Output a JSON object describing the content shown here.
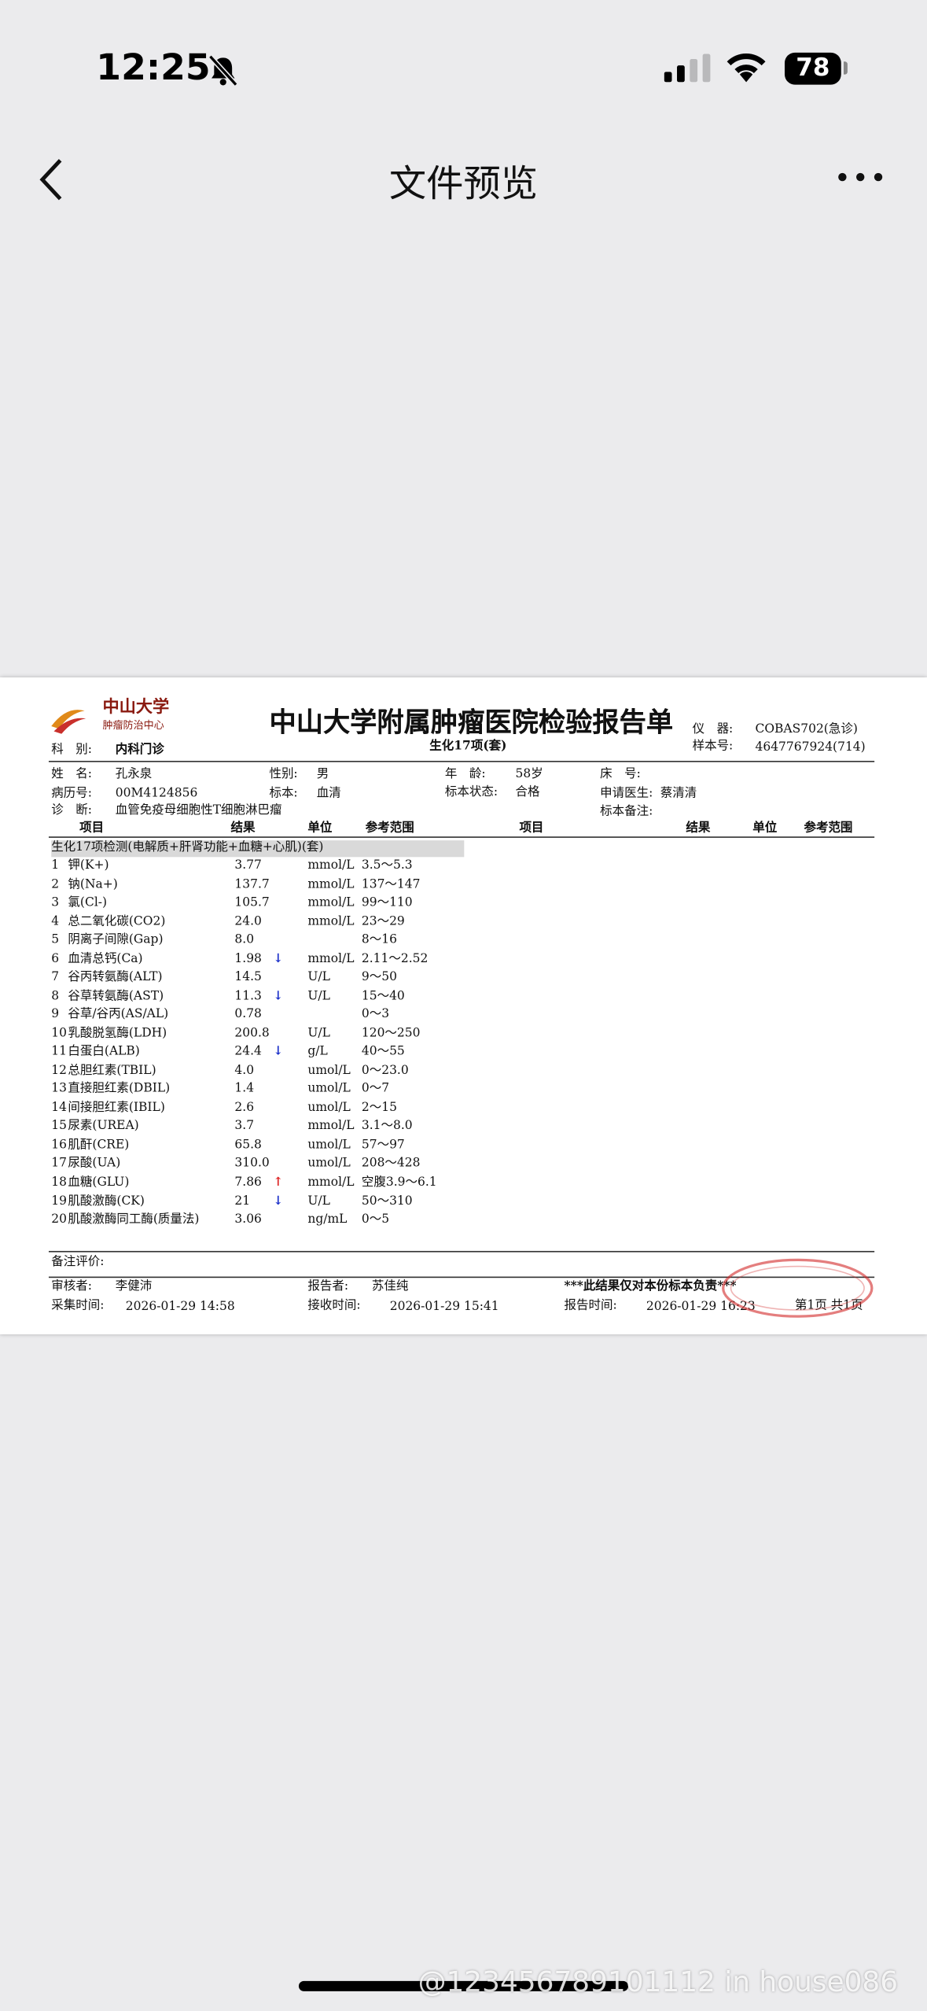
{
  "status_bar": {
    "time": "12:25",
    "battery": "78"
  },
  "nav": {
    "title": "文件预览"
  },
  "report": {
    "logo_name": "中山大学",
    "logo_sub": "肿瘤防治中心",
    "title": "中山大学附属肿瘤医院检验报告单",
    "subtitle": "生化17项(套)",
    "instrument_label": "仪　器:",
    "instrument": "COBAS702(急诊)",
    "sample_label": "样本号:",
    "sample": "4647767924(714)",
    "dept_label": "科　别:",
    "dept": "内科门诊",
    "name_label": "姓　名:",
    "name": "孔永泉",
    "sex_label": "性别:",
    "sex": "男",
    "age_label": "年　龄:",
    "age": "58岁",
    "bed_label": "床　号:",
    "record_label": "病历号:",
    "record": "00M4124856",
    "specimen_label": "标本:",
    "specimen": "血清",
    "status_label": "标本状态:",
    "status": "合格",
    "doctor_label": "申请医生:",
    "doctor": "蔡清清",
    "diagnosis_label": "诊　断:",
    "diagnosis": "血管免疫母细胞性T细胞淋巴瘤",
    "remark_label": "标本备注:",
    "columns": [
      "项目",
      "结果",
      "单位",
      "参考范围",
      "项目",
      "结果",
      "单位",
      "参考范围"
    ],
    "group": "生化17项检测(电解质+肝肾功能+血糖+心肌)(套)",
    "rows": [
      [
        "1",
        "钾(K+)",
        "3.77",
        null,
        "mmol/L",
        "3.5～5.3"
      ],
      [
        "2",
        "钠(Na+)",
        "137.7",
        null,
        "mmol/L",
        "137～147"
      ],
      [
        "3",
        "氯(Cl-)",
        "105.7",
        null,
        "mmol/L",
        "99～110"
      ],
      [
        "4",
        "总二氧化碳(CO2)",
        "24.0",
        null,
        "mmol/L",
        "23～29"
      ],
      [
        "5",
        "阴离子间隙(Gap)",
        "8.0",
        null,
        null,
        "8～16"
      ],
      [
        "6",
        "血清总钙(Ca)",
        "1.98",
        "↓",
        "mmol/L",
        "2.11～2.52"
      ],
      [
        "7",
        "谷丙转氨酶(ALT)",
        "14.5",
        null,
        "U/L",
        "9～50"
      ],
      [
        "8",
        "谷草转氨酶(AST)",
        "11.3",
        "↓",
        "U/L",
        "15～40"
      ],
      [
        "9",
        "谷草/谷丙(AS/AL)",
        "0.78",
        null,
        null,
        "0～3"
      ],
      [
        "10",
        "乳酸脱氢酶(LDH)",
        "200.8",
        null,
        "U/L",
        "120～250"
      ],
      [
        "11",
        "白蛋白(ALB)",
        "24.4",
        "↓",
        "g/L",
        "40～55"
      ],
      [
        "12",
        "总胆红素(TBIL)",
        "4.0",
        null,
        "umol/L",
        "0～23.0"
      ],
      [
        "13",
        "直接胆红素(DBIL)",
        "1.4",
        null,
        "umol/L",
        "0～7"
      ],
      [
        "14",
        "间接胆红素(IBIL)",
        "2.6",
        null,
        "umol/L",
        "2～15"
      ],
      [
        "15",
        "尿素(UREA)",
        "3.7",
        null,
        "mmol/L",
        "3.1～8.0"
      ],
      [
        "16",
        "肌酐(CRE)",
        "65.8",
        null,
        "umol/L",
        "57～97"
      ],
      [
        "17",
        "尿酸(UA)",
        "310.0",
        null,
        "umol/L",
        "208～428"
      ],
      [
        "18",
        "血糖(GLU)",
        "7.86",
        "↑",
        "mmol/L",
        "空腹3.9～6.1"
      ],
      [
        "19",
        "肌酸激酶(CK)",
        "21",
        "↓",
        "U/L",
        "50～310"
      ],
      [
        "20",
        "肌酸激酶同工酶(质量法)",
        "3.06",
        null,
        "ng/mL",
        "0～5"
      ]
    ],
    "comment_label": "备注评价:",
    "reviewer_label": "审核者:",
    "reviewer": "李健沛",
    "reporter_label": "报告者:",
    "reporter": "苏佳纯",
    "disclaimer": "***此结果仅对本份标本负责***",
    "collect_label": "采集时间:",
    "collect_time": "2026-01-29 14:58",
    "receive_label": "接收时间:",
    "receive_time": "2026-01-29 15:41",
    "report_label": "报告时间:",
    "report_time": "2026-01-29 16:23",
    "page": "第1页 共1页"
  },
  "watermark": "@123456789101112 in house086"
}
